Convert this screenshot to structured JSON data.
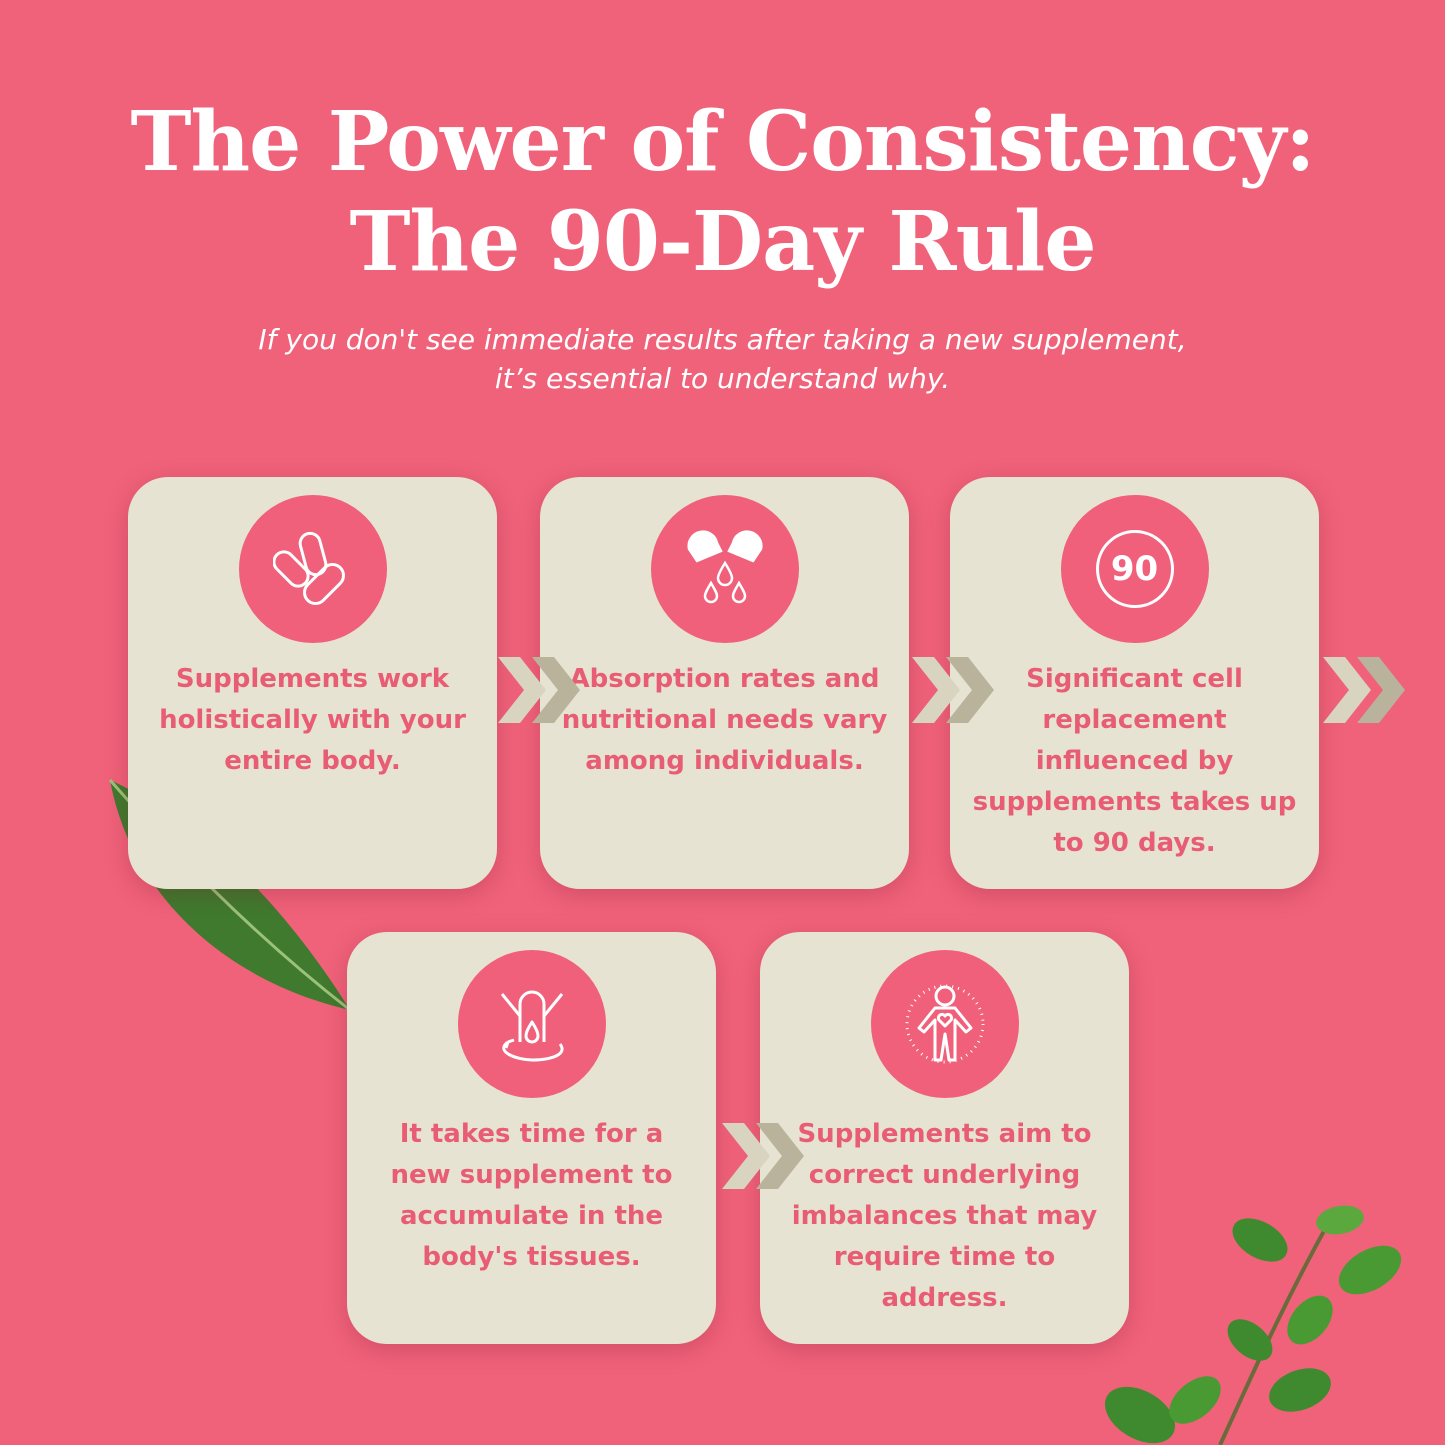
{
  "header": {
    "title_line1": "The Power of Consistency:",
    "title_line2": "The 90-Day Rule",
    "subtitle_line1": "If you don't see immediate results after taking a new supplement,",
    "subtitle_line2": "it’s essential to understand why."
  },
  "colors": {
    "background": "#f0627a",
    "card": "#e6e3d3",
    "accent_text": "#e85c74",
    "icon_circle": "#f0607a",
    "chevron_light": "#d8d4c0",
    "chevron_dark": "#b8b39a"
  },
  "cards": [
    {
      "icon": "pills-icon",
      "text": "Supplements work holistically with your entire body."
    },
    {
      "icon": "capsule-drops-icon",
      "text": "Absorption rates and nutritional needs vary among individuals."
    },
    {
      "icon": "ninety-badge-icon",
      "icon_text": "90",
      "text": "Significant cell replacement influenced by supplements takes up to 90 days."
    },
    {
      "icon": "body-absorption-icon",
      "text": "It takes time for a new supplement to accumulate in the body's tissues."
    },
    {
      "icon": "body-heart-icon",
      "text": "Supplements aim to correct underlying imbalances that may require time to address."
    }
  ]
}
